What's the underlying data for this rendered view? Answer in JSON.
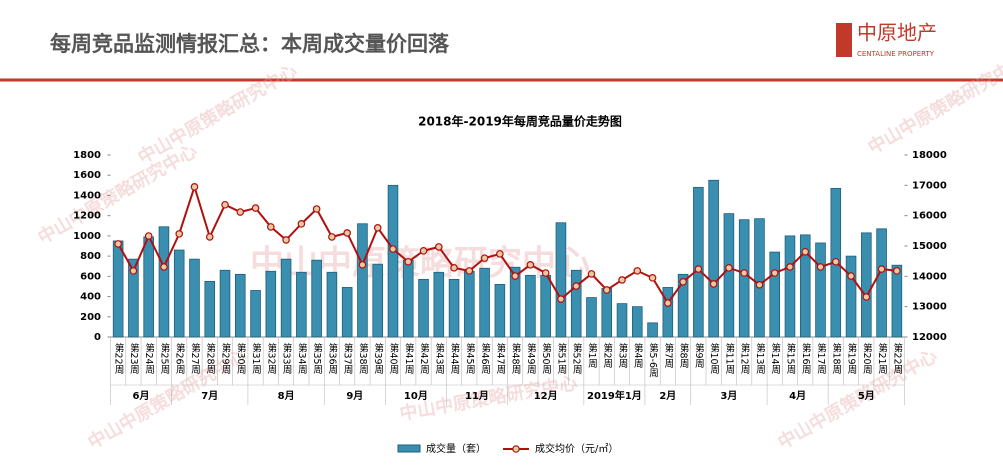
{
  "header": {
    "title": "每周竞品监测情报汇总：本周成交量价回落",
    "logo_cn": "中原地产",
    "logo_en": "CENTALINE PROPERTY"
  },
  "watermark": "中山中原策略研究中心",
  "chart_data": {
    "type": "bar-line",
    "title": "2018年-2019年每周竞品量价走势图",
    "categories": [
      "第22周",
      "第23周",
      "第24周",
      "第25周",
      "第26周",
      "第27周",
      "第28周",
      "第29周",
      "第30周",
      "第31周",
      "第32周",
      "第33周",
      "第34周",
      "第35周",
      "第36周",
      "第37周",
      "第38周",
      "第39周",
      "第40周",
      "第41周",
      "第42周",
      "第43周",
      "第44周",
      "第45周",
      "第46周",
      "第47周",
      "第48周",
      "第49周",
      "第50周",
      "第51周",
      "第52周",
      "第1周",
      "第2周",
      "第3周",
      "第4周",
      "第5-6周",
      "第7周",
      "第8周",
      "第9周",
      "第10周",
      "第11周",
      "第12周",
      "第13周",
      "第14周",
      "第15周",
      "第16周",
      "第17周",
      "第18周",
      "第19周",
      "第20周",
      "第21周",
      "第22周"
    ],
    "months": [
      "6月",
      "7月",
      "8月",
      "9月",
      "10月",
      "11月",
      "12月",
      "2019年1月",
      "2月",
      "3月",
      "4月",
      "5月"
    ],
    "series": [
      {
        "name": "成交量（套）",
        "type": "bar",
        "color": "#3a8fb0",
        "values": [
          950,
          770,
          990,
          1090,
          860,
          770,
          550,
          660,
          620,
          460,
          650,
          770,
          640,
          760,
          640,
          490,
          1120,
          720,
          1500,
          760,
          570,
          640,
          570,
          650,
          680,
          520,
          690,
          610,
          610,
          1130,
          660,
          390,
          480,
          330,
          300,
          140,
          490,
          620,
          1480,
          1550,
          1220,
          1160,
          1170,
          840,
          1000,
          1010,
          930,
          1470,
          800,
          1030,
          1070,
          710
        ]
      },
      {
        "name": "成交均价（元/㎡）",
        "type": "line",
        "axis": "y2",
        "color": "#b01010",
        "values": [
          15070,
          14180,
          15330,
          14310,
          15400,
          16950,
          15300,
          16360,
          16120,
          16250,
          15630,
          15200,
          15730,
          16220,
          15300,
          15430,
          14380,
          15600,
          14900,
          14480,
          14840,
          14970,
          14280,
          14180,
          14600,
          14740,
          14010,
          14380,
          14110,
          13250,
          13680,
          14080,
          13550,
          13880,
          14180,
          13950,
          13120,
          13820,
          14240,
          13750,
          14280,
          14110,
          13720,
          14110,
          14310,
          14810,
          14310,
          14480,
          14010,
          13320,
          14240,
          14180
        ]
      }
    ],
    "ylim": [
      0,
      1800
    ],
    "yticks": [
      0,
      200,
      400,
      600,
      800,
      1000,
      1200,
      1400,
      1600,
      1800
    ],
    "y2lim": [
      12000,
      18000
    ],
    "y2ticks": [
      12000,
      13000,
      14000,
      15000,
      16000,
      17000,
      18000
    ],
    "grid": false
  }
}
